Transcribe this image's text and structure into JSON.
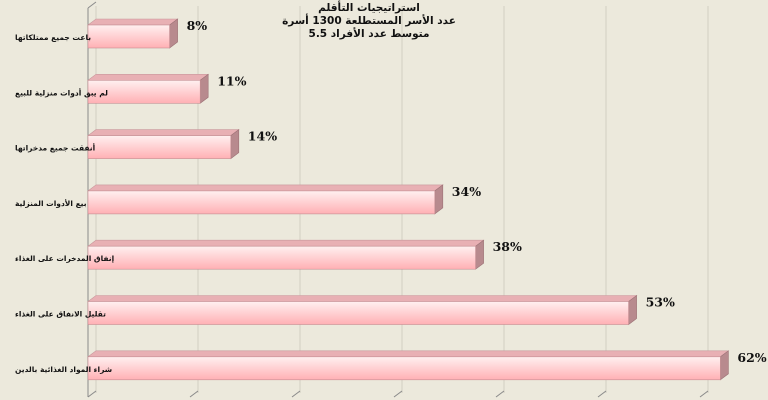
{
  "chart_data": {
    "type": "bar",
    "orientation": "horizontal",
    "style": "3d",
    "title_lines": [
      "استراتيجيات التأقلم",
      "عدد الأسر المستطلعة 1300 أسرة",
      "متوسط عدد الأفراد 5.5"
    ],
    "categories": [
      "باعت جميع ممتلكاتها",
      "لم يبق أدوات منزلية للبيع",
      "أنفقت جميع مدخراتها",
      "بيع الأدوات المنزلية",
      "إنفاق المدخرات على الغذاء",
      "تقليل الانفاق على الغذاء",
      "شراء المواد الغذائية بالدين"
    ],
    "values": [
      8,
      11,
      14,
      34,
      38,
      53,
      62
    ],
    "value_labels": [
      "8%",
      "11%",
      "14%",
      "34%",
      "38%",
      "53%",
      "62%"
    ],
    "xlim": [
      0,
      70
    ],
    "grid": true,
    "colors": {
      "background": "#ece9dc",
      "bar_front_light": "#fff0f0",
      "bar_front_dark": "#ffb0b4",
      "bar_top": "#e8b0b4",
      "bar_side": "#b88a8e",
      "grid": "#d2cfc2",
      "axis": "#8a8a8a"
    }
  }
}
